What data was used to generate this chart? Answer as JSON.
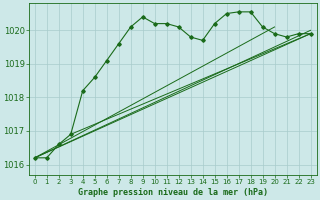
{
  "title": "Graphe pression niveau de la mer (hPa)",
  "background_color": "#cde8e8",
  "plot_bg_color": "#cde8e8",
  "grid_color": "#a8cccc",
  "line_color": "#1a6b1a",
  "xlim": [
    -0.5,
    23.5
  ],
  "ylim": [
    1015.7,
    1020.8
  ],
  "yticks": [
    1016,
    1017,
    1018,
    1019,
    1020
  ],
  "xticks": [
    0,
    1,
    2,
    3,
    4,
    5,
    6,
    7,
    8,
    9,
    10,
    11,
    12,
    13,
    14,
    15,
    16,
    17,
    18,
    19,
    20,
    21,
    22,
    23
  ],
  "main_series_x": [
    0,
    1,
    2,
    3,
    4,
    5,
    6,
    7,
    8,
    9,
    10,
    11,
    12,
    13,
    14,
    15,
    16,
    17,
    18,
    19,
    20,
    21,
    22,
    23
  ],
  "main_series_y": [
    1016.2,
    1016.2,
    1016.6,
    1016.9,
    1018.2,
    1018.6,
    1019.1,
    1019.6,
    1020.1,
    1020.4,
    1020.2,
    1020.2,
    1020.1,
    1019.8,
    1019.7,
    1020.2,
    1020.5,
    1020.55,
    1020.55,
    1020.1,
    1019.9,
    1019.8,
    1019.9,
    1019.9
  ],
  "straight_lines": [
    {
      "x": [
        0,
        23
      ],
      "y": [
        1016.2,
        1019.9
      ]
    },
    {
      "x": [
        0,
        23
      ],
      "y": [
        1016.2,
        1019.9
      ]
    },
    {
      "x": [
        0,
        20
      ],
      "y": [
        1016.2,
        1019.9
      ]
    },
    {
      "x": [
        3,
        23
      ],
      "y": [
        1016.9,
        1019.9
      ]
    }
  ]
}
